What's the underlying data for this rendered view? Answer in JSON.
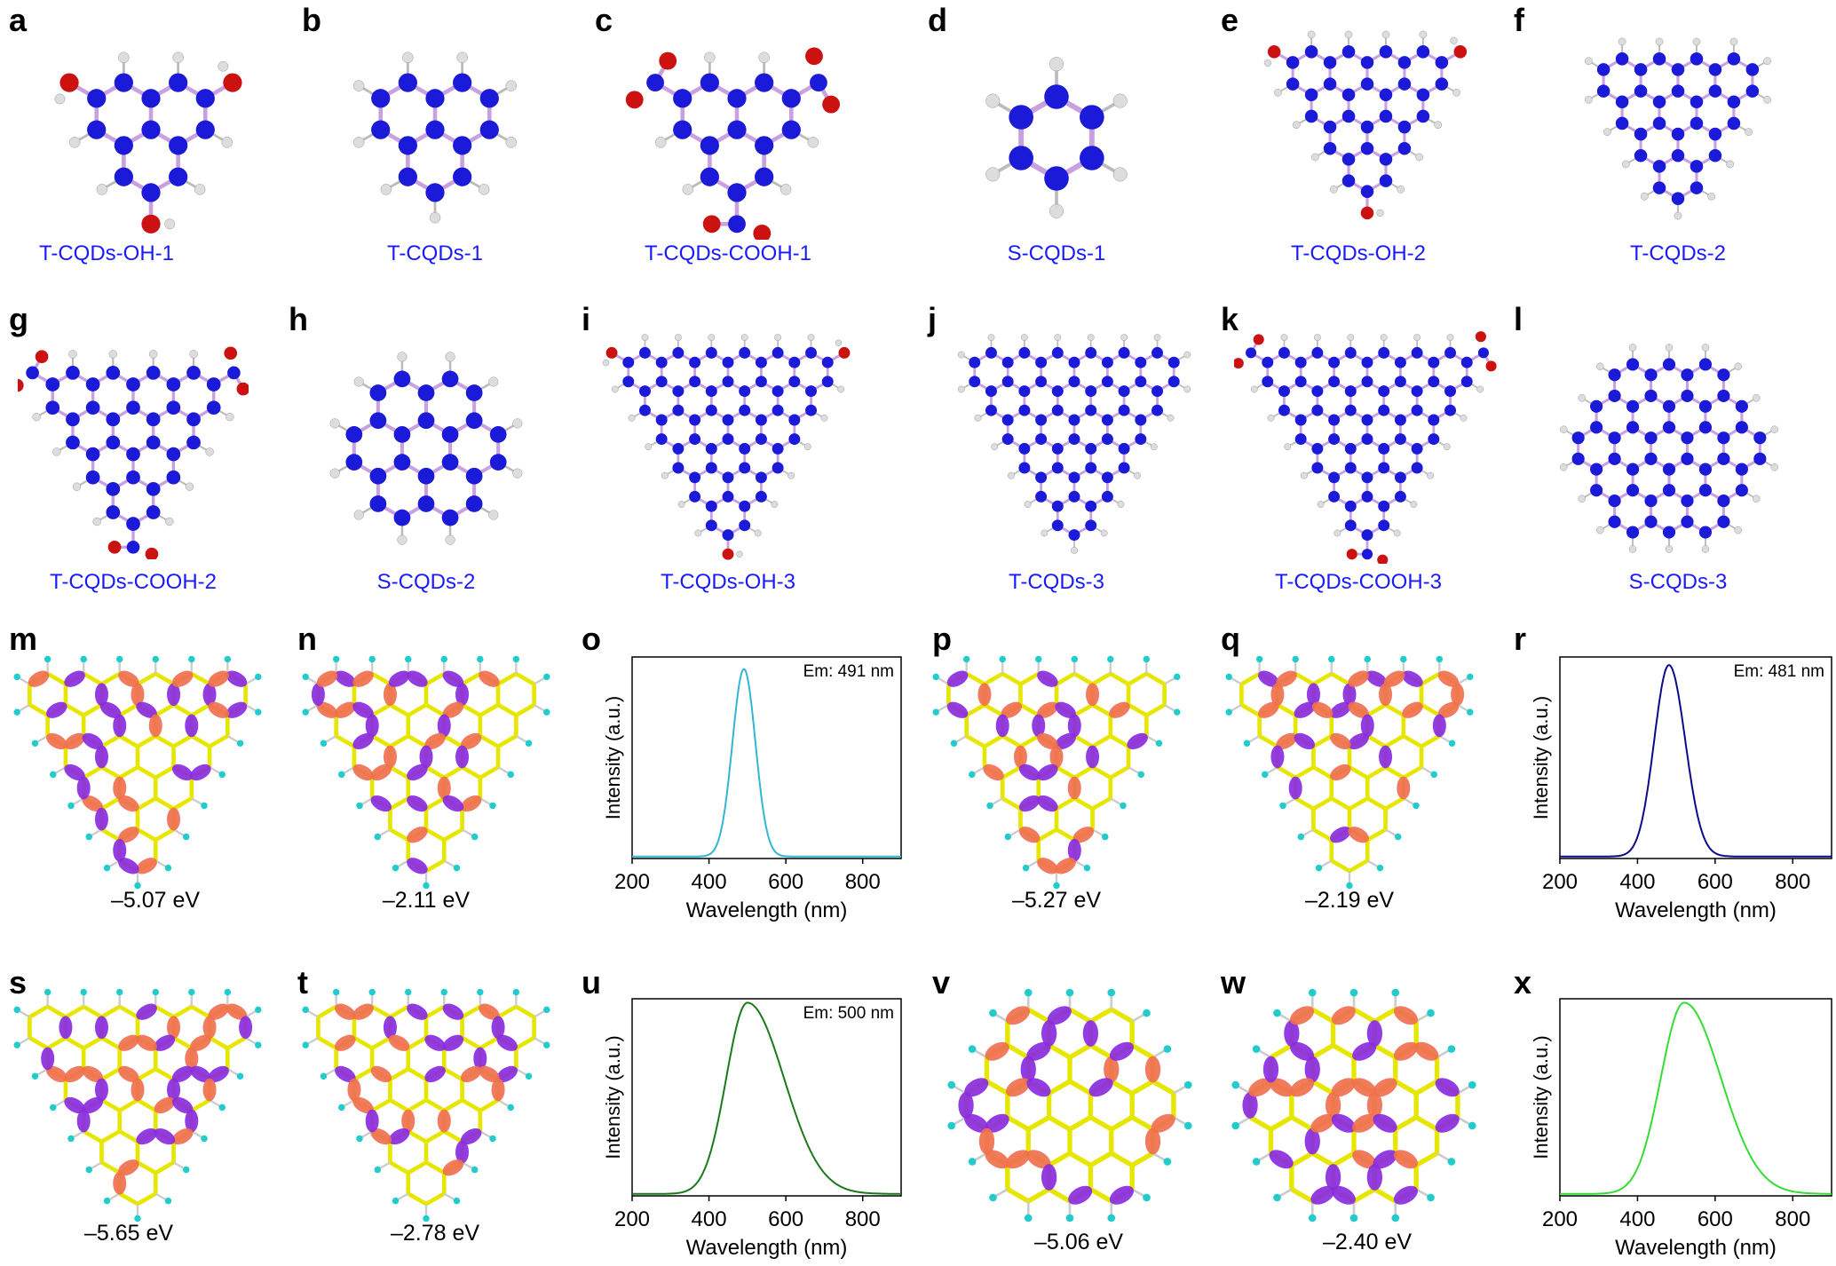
{
  "structures": [
    {
      "letter": "a",
      "name": "T-CQDs-OH-1",
      "shape": "tri",
      "size": 2,
      "func": "OH"
    },
    {
      "letter": "b",
      "name": "T-CQDs-1",
      "shape": "tri",
      "size": 2,
      "func": "none"
    },
    {
      "letter": "c",
      "name": "T-CQDs-COOH-1",
      "shape": "tri",
      "size": 2,
      "func": "COOH"
    },
    {
      "letter": "d",
      "name": "S-CQDs-1",
      "shape": "hex",
      "size": 1,
      "func": "none"
    },
    {
      "letter": "e",
      "name": "T-CQDs-OH-2",
      "shape": "tri",
      "size": 4,
      "func": "OH"
    },
    {
      "letter": "f",
      "name": "T-CQDs-2",
      "shape": "tri",
      "size": 4,
      "func": "none"
    },
    {
      "letter": "g",
      "name": "T-CQDs-COOH-2",
      "shape": "tri",
      "size": 4,
      "func": "COOH"
    },
    {
      "letter": "h",
      "name": "S-CQDs-2",
      "shape": "hex",
      "size": 2,
      "func": "none"
    },
    {
      "letter": "i",
      "name": "T-CQDs-OH-3",
      "shape": "tri",
      "size": 6,
      "func": "OH"
    },
    {
      "letter": "j",
      "name": "T-CQDs-3",
      "shape": "tri",
      "size": 6,
      "func": "none"
    },
    {
      "letter": "k",
      "name": "T-CQDs-COOH-3",
      "shape": "tri",
      "size": 6,
      "func": "COOH"
    },
    {
      "letter": "l",
      "name": "S-CQDs-3",
      "shape": "hex",
      "size": 3,
      "func": "none"
    }
  ],
  "orbitals": [
    {
      "letter": "m",
      "energy": "–5.07 eV",
      "shape": "tri"
    },
    {
      "letter": "n",
      "energy": "–2.11 eV",
      "shape": "tri"
    },
    {
      "letter": "p",
      "energy": "–5.27 eV",
      "shape": "tri"
    },
    {
      "letter": "q",
      "energy": "–2.19 eV",
      "shape": "tri"
    },
    {
      "letter": "s",
      "energy": "–5.65 eV",
      "shape": "tri"
    },
    {
      "letter": "t",
      "energy": "–2.78 eV",
      "shape": "tri"
    },
    {
      "letter": "v",
      "energy": "–5.06 eV",
      "shape": "hex"
    },
    {
      "letter": "w",
      "energy": "–2.40 eV",
      "shape": "hex"
    }
  ],
  "colors": {
    "atom_carbon": "#1a1ad8",
    "atom_oxygen": "#cc1111",
    "atom_hydrogen": "#dddddd",
    "bond": "#c9a0e0",
    "label_blue": "#1a1aff",
    "orbital_purple": "#8a2be2",
    "orbital_orange": "#f07050",
    "skeleton_yellow": "#e6e600",
    "skeleton_cyan": "#22cccc"
  },
  "chart_data": [
    {
      "letter": "o",
      "type": "line",
      "title": "",
      "xlabel": "Wavelength (nm)",
      "ylabel": "Intensity (a.u.)",
      "annotation": "Em: 491 nm",
      "xlim": [
        200,
        900
      ],
      "xticks": [
        200,
        400,
        600,
        800
      ],
      "ylim": [
        0,
        1
      ],
      "color": "#33b5d6",
      "peak": 491,
      "sigma_left": 30,
      "sigma_right": 30,
      "peak_height": 0.93
    },
    {
      "letter": "r",
      "type": "line",
      "title": "",
      "xlabel": "Wavelength (nm)",
      "ylabel": "Intensity (a.u.)",
      "annotation": "Em: 481 nm",
      "xlim": [
        200,
        900
      ],
      "xticks": [
        200,
        400,
        600,
        800
      ],
      "ylim": [
        0,
        1
      ],
      "color": "#0a0a8a",
      "peak": 481,
      "sigma_left": 38,
      "sigma_right": 42,
      "peak_height": 0.95
    },
    {
      "letter": "u",
      "type": "line",
      "title": "",
      "xlabel": "Wavelength (nm)",
      "ylabel": "Intensity (a.u.)",
      "annotation": "Em: 500 nm",
      "xlim": [
        200,
        900
      ],
      "xticks": [
        200,
        400,
        600,
        800
      ],
      "ylim": [
        0,
        1
      ],
      "color": "#1a7a1a",
      "peak": 500,
      "sigma_left": 55,
      "sigma_right": 95,
      "peak_height": 0.97
    },
    {
      "letter": "x",
      "type": "line",
      "title": "",
      "xlabel": "Wavelength (nm)",
      "ylabel": "Intensity (a.u.)",
      "annotation": "",
      "xlim": [
        200,
        900
      ],
      "xticks": [
        200,
        400,
        600,
        800
      ],
      "ylim": [
        0,
        1
      ],
      "color": "#33dd33",
      "peak": 520,
      "sigma_left": 60,
      "sigma_right": 95,
      "peak_height": 0.97
    }
  ]
}
